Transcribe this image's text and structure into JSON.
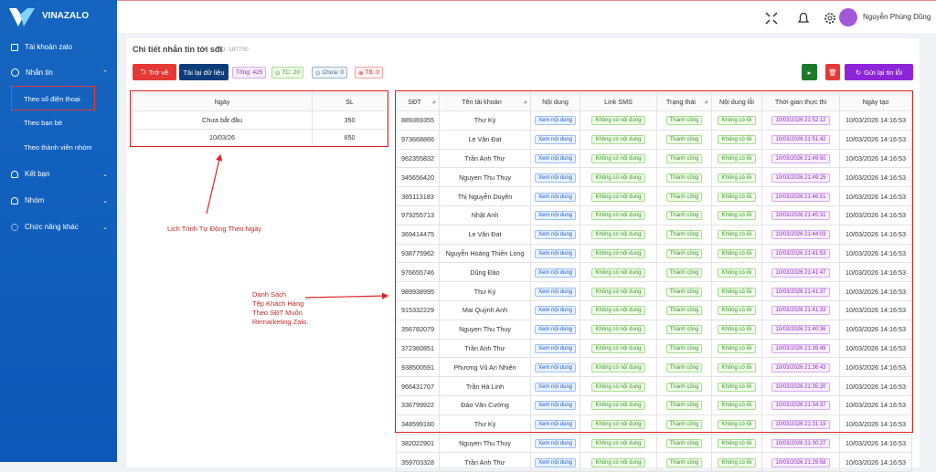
{
  "sidebar": {
    "brand": "VINAZALO",
    "menu": [
      "Tài khoản zalo",
      "Nhắn tin",
      "Kết bạn",
      "Nhóm",
      "Chức năng khác"
    ],
    "submenu": [
      "Theo số điện thoại",
      "Theo bạn bè",
      "Theo thành viên nhóm"
    ]
  },
  "topbar": {
    "user": "Nguyễn Phùng Dũng"
  },
  "page": {
    "title": "Chi tiết nhắn tin tới sđt",
    "id": "ID: 187700",
    "buttons": {
      "back": "Trở về",
      "reload": "Tải lại dữ liệu",
      "resend": "Gửi lại tin lỗi"
    },
    "badges": [
      "Tổng: 425",
      "TC: 20",
      "Chưa: 0",
      "TB: 0"
    ]
  },
  "schedule_table": {
    "headers": [
      "Ngày",
      "SL"
    ],
    "rows": [
      [
        "Chưa bắt đầu",
        350
      ],
      [
        "10/03/26",
        650
      ]
    ]
  },
  "annotations": {
    "schedule": "Lịch Trình Tự Động Theo Ngày",
    "list": [
      "Danh Sách",
      "Tệp Khách Hàng",
      "Theo SĐT Muốn",
      "Remarketing Zalo."
    ]
  },
  "message_table": {
    "headers": [
      "SĐT",
      "Tên tài khoản",
      "Nội dung",
      "Link SMS",
      "Trạng thái",
      "Nội dung lỗi",
      "Thời gian thực thi",
      "Ngày tạo"
    ],
    "rows": [
      [
        "889369355",
        "Thư Ký",
        "Xem nội dung",
        "Không có nội dung",
        "Thành công",
        "Không có lỗi",
        "10/03/2026 21:52:12",
        "10/03/2026 14:16:53"
      ],
      [
        "973668866",
        "Le Văn Đat",
        "Xem nội dung",
        "Không có nội dung",
        "Thành công",
        "Không có lỗi",
        "10/03/2026 21:51:42",
        "10/03/2026 14:16:53"
      ],
      [
        "962355832",
        "Trần Anh Thư",
        "Xem nội dung",
        "Không có nội dung",
        "Thành công",
        "Không có lỗi",
        "10/03/2026 21:49:50",
        "10/03/2026 14:16:53"
      ],
      [
        "345656420",
        "Nguyen Thu Thuy",
        "Xem nội dung",
        "Không có nội dung",
        "Thành công",
        "Không có lỗi",
        "10/03/2026 21:49:25",
        "10/03/2026 14:16:53"
      ],
      [
        "365113183",
        "Thị Nguyễn Duyên",
        "Xem nội dung",
        "Không có nội dung",
        "Thành công",
        "Không có lỗi",
        "10/03/2026 21:46:51",
        "10/03/2026 14:16:53"
      ],
      [
        "979255713",
        "Nhật Anh",
        "Xem nội dung",
        "Không có nội dung",
        "Thành công",
        "Không có lỗi",
        "10/03/2026 21:45:31",
        "10/03/2026 14:16:53"
      ],
      [
        "369414475",
        "Le Văn Đat",
        "Xem nội dung",
        "Không có nội dung",
        "Thành công",
        "Không có lỗi",
        "10/03/2026 21:44:03",
        "10/03/2026 14:16:53"
      ],
      [
        "938775962",
        "Nguyễn Hoàng Thiên Long",
        "Xem nội dung",
        "Không có nội dung",
        "Thành công",
        "Không có lỗi",
        "10/03/2026 21:41:53",
        "10/03/2026 14:16:53"
      ],
      [
        "976655746",
        "Dũng Đào",
        "Xem nội dung",
        "Không có nội dung",
        "Thành công",
        "Không có lỗi",
        "10/03/2026 21:41:47",
        "10/03/2026 14:16:53"
      ],
      [
        "989938995",
        "Thư Ký",
        "Xem nội dung",
        "Không có nội dung",
        "Thành công",
        "Không có lỗi",
        "10/03/2026 21:41:37",
        "10/03/2026 14:16:53"
      ],
      [
        "915332229",
        "Mai Quỳnh Anh",
        "Xem nội dung",
        "Không có nội dung",
        "Thành công",
        "Không có lỗi",
        "10/03/2026 21:41:33",
        "10/03/2026 14:16:53"
      ],
      [
        "356782079",
        "Nguyen Thu Thuy",
        "Xem nội dung",
        "Không có nội dung",
        "Thành công",
        "Không có lỗi",
        "10/03/2026 21:40:36",
        "10/03/2026 14:16:53"
      ],
      [
        "372360851",
        "Trần Anh Thư",
        "Xem nội dung",
        "Không có nội dung",
        "Thành công",
        "Không có lỗi",
        "10/03/2026 21:39:49",
        "10/03/2026 14:16:53"
      ],
      [
        "938500591",
        "Phương Vũ An Nhiên",
        "Xem nội dung",
        "Không có nội dung",
        "Thành công",
        "Không có lỗi",
        "10/03/2026 21:36:43",
        "10/03/2026 14:16:53"
      ],
      [
        "966431707",
        "Trần Hà Linh",
        "Xem nội dung",
        "Không có nội dung",
        "Thành công",
        "Không có lỗi",
        "10/03/2026 21:35:20",
        "10/03/2026 14:16:53"
      ],
      [
        "336799922",
        "Đào Văn Cường",
        "Xem nội dung",
        "Không có nội dung",
        "Thành công",
        "Không có lỗi",
        "10/03/2026 21:34:37",
        "10/03/2026 14:16:53"
      ],
      [
        "348599160",
        "Thư Ký",
        "Xem nội dung",
        "Không có nội dung",
        "Thành công",
        "Không có lỗi",
        "10/03/2026 21:31:19",
        "10/03/2026 14:16:53"
      ],
      [
        "382022901",
        "Nguyen Thu Thuy",
        "Xem nội dung",
        "Không có nội dung",
        "Thành công",
        "Không có lỗi",
        "10/03/2026 21:30:27",
        "10/03/2026 14:16:53"
      ],
      [
        "359703328",
        "Trần Anh Thư",
        "Xem nội dung",
        "Không có nội dung",
        "Thành công",
        "Không có lỗi",
        "10/03/2026 21:29:58",
        "10/03/2026 14:16:53"
      ]
    ]
  }
}
